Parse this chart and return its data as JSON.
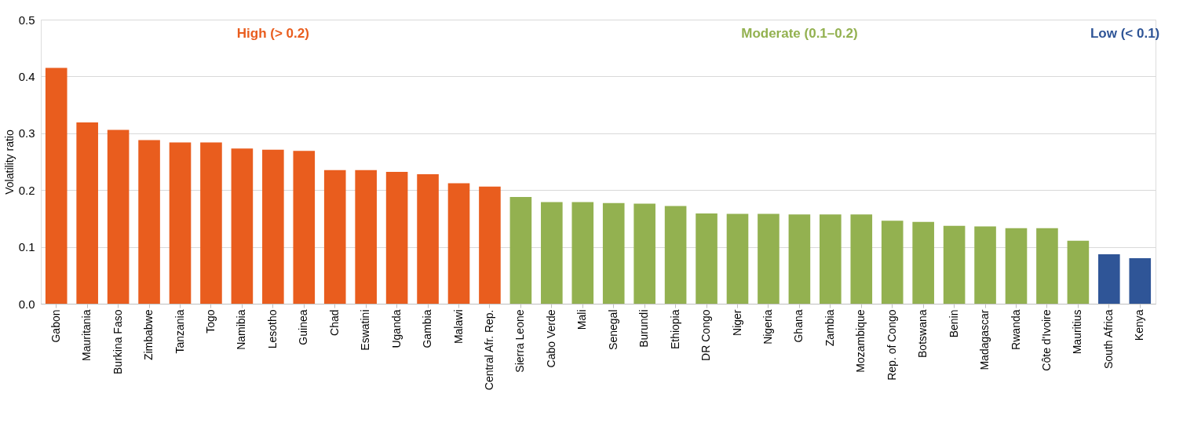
{
  "chart_data": {
    "type": "bar",
    "ylabel": "Volatility ratio",
    "categories": [
      "Gabon",
      "Mauritania",
      "Burkina Faso",
      "Zimbabwe",
      "Tanzania",
      "Togo",
      "Namibia",
      "Lesotho",
      "Guinea",
      "Chad",
      "Eswatini",
      "Uganda",
      "Gambia",
      "Malawi",
      "Central Afr. Rep.",
      "Sierra Leone",
      "Cabo Verde",
      "Mali",
      "Senegal",
      "Burundi",
      "Ethiopia",
      "DR Congo",
      "Niger",
      "Nigeria",
      "Ghana",
      "Zambia",
      "Mozambique",
      "Rep. of Congo",
      "Botswana",
      "Benin",
      "Madagascar",
      "Rwanda",
      "Côte d'Ivoire",
      "Mauritius",
      "South Africa",
      "Kenya"
    ],
    "values": [
      0.415,
      0.319,
      0.306,
      0.288,
      0.284,
      0.284,
      0.273,
      0.271,
      0.269,
      0.235,
      0.235,
      0.232,
      0.228,
      0.212,
      0.206,
      0.188,
      0.179,
      0.179,
      0.177,
      0.176,
      0.172,
      0.159,
      0.158,
      0.158,
      0.157,
      0.157,
      0.157,
      0.146,
      0.144,
      0.137,
      0.136,
      0.133,
      0.133,
      0.111,
      0.087,
      0.08
    ],
    "colors": [
      "#e95d1e",
      "#e95d1e",
      "#e95d1e",
      "#e95d1e",
      "#e95d1e",
      "#e95d1e",
      "#e95d1e",
      "#e95d1e",
      "#e95d1e",
      "#e95d1e",
      "#e95d1e",
      "#e95d1e",
      "#e95d1e",
      "#e95d1e",
      "#e95d1e",
      "#93b150",
      "#93b150",
      "#93b150",
      "#93b150",
      "#93b150",
      "#93b150",
      "#93b150",
      "#93b150",
      "#93b150",
      "#93b150",
      "#93b150",
      "#93b150",
      "#93b150",
      "#93b150",
      "#93b150",
      "#93b150",
      "#93b150",
      "#93b150",
      "#93b150",
      "#2f5597",
      "#2f5597"
    ],
    "ylim": [
      0,
      0.5
    ],
    "yticks": [
      {
        "value": 0,
        "label": "0.0"
      },
      0.1,
      0.2,
      0.3,
      0.4,
      0.5
    ],
    "grid": "y",
    "annotations": [
      "High (> 0.2)",
      "Moderate (0.1–0.2)",
      "Low (< 0.1)"
    ]
  }
}
